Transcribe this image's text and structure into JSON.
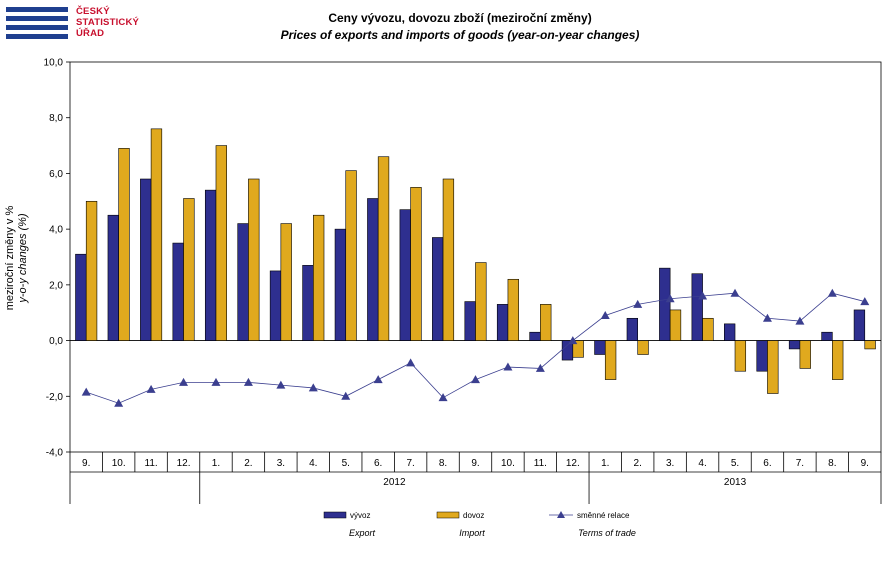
{
  "logo": {
    "lines": [
      "ČESKÝ",
      "STATISTICKÝ",
      "ÚŘAD"
    ],
    "color": "#c8102e",
    "bar_color": "#1f3f8f"
  },
  "chart_data": {
    "type": "bar",
    "title": "Ceny vývozu, dovozu zboží (meziroční změny)",
    "subtitle": "Prices of exports and imports of goods (year-on-year  changes)",
    "ylabel": "meziroční změny v %",
    "ylabel_en": "y-o-y changes (%)",
    "ylim": [
      -4,
      10
    ],
    "yticks": [
      "-4,0",
      "-2,0",
      "0,0",
      "2,0",
      "4,0",
      "6,0",
      "8,0",
      "10,0"
    ],
    "categories": [
      "9.",
      "10.",
      "11.",
      "12.",
      "1.",
      "2.",
      "3.",
      "4.",
      "5.",
      "6.",
      "7.",
      "8.",
      "9.",
      "10.",
      "11.",
      "12.",
      "1.",
      "2.",
      "3.",
      "4.",
      "5.",
      "6.",
      "7.",
      "8.",
      "9."
    ],
    "years": [
      {
        "label": "2012",
        "from": 4,
        "to": 15
      },
      {
        "label": "2013",
        "from": 16,
        "to": 24
      }
    ],
    "series": [
      {
        "name": "vývoz",
        "name_en": "Export",
        "kind": "bar",
        "color": "#2e2f8f",
        "values": [
          3.1,
          4.5,
          5.8,
          3.5,
          5.4,
          4.2,
          2.5,
          2.7,
          4.0,
          5.1,
          4.7,
          3.7,
          1.4,
          1.3,
          0.3,
          -0.7,
          -0.5,
          0.8,
          2.6,
          2.4,
          0.6,
          -1.1,
          -0.3,
          0.3,
          1.1
        ]
      },
      {
        "name": "dovoz",
        "name_en": "Import",
        "kind": "bar",
        "color": "#e0a91e",
        "values": [
          5.0,
          6.9,
          7.6,
          5.1,
          7.0,
          5.8,
          4.2,
          4.5,
          6.1,
          6.6,
          5.5,
          5.8,
          2.8,
          2.2,
          1.3,
          -0.6,
          -1.4,
          -0.5,
          1.1,
          0.8,
          -1.1,
          -1.9,
          -1.0,
          -1.4,
          -0.3
        ]
      },
      {
        "name": "směnné relace",
        "name_en": "Terms of trade",
        "kind": "line",
        "color": "#3b3f8f",
        "values": [
          -1.85,
          -2.25,
          -1.75,
          -1.5,
          -1.5,
          -1.5,
          -1.6,
          -1.7,
          -2.0,
          -1.4,
          -0.8,
          -2.05,
          -1.4,
          -0.95,
          -1.0,
          0.0,
          0.9,
          1.3,
          1.5,
          1.6,
          1.7,
          0.8,
          0.7,
          1.7,
          1.4
        ]
      }
    ]
  }
}
